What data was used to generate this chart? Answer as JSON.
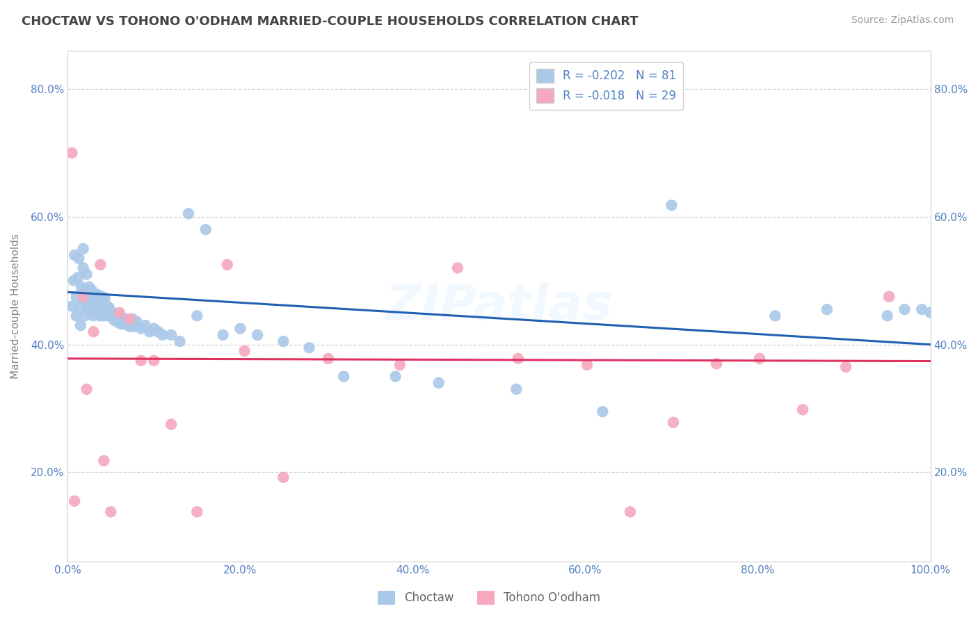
{
  "title": "CHOCTAW VS TOHONO O'ODHAM MARRIED-COUPLE HOUSEHOLDS CORRELATION CHART",
  "source": "Source: ZipAtlas.com",
  "ylabel": "Married-couple Households",
  "legend_labels": [
    "Choctaw",
    "Tohono O'odham"
  ],
  "choctaw_R": -0.202,
  "choctaw_N": 81,
  "tohono_R": -0.018,
  "tohono_N": 29,
  "choctaw_color": "#aac8e8",
  "tohono_color": "#f5a8be",
  "choctaw_line_color": "#2060b0",
  "tohono_line_color": "#e03060",
  "background_color": "#ffffff",
  "grid_color": "#c8c8d8",
  "tick_color": "#5080c0",
  "xlim": [
    0.0,
    1.0
  ],
  "ylim": [
    0.06,
    0.86
  ],
  "xticks": [
    0.0,
    0.2,
    0.4,
    0.6,
    0.8,
    1.0
  ],
  "yticks": [
    0.2,
    0.4,
    0.6,
    0.8
  ],
  "choctaw_trend_start": 0.482,
  "choctaw_trend_end": 0.4,
  "tohono_trend_start": 0.378,
  "tohono_trend_end": 0.374,
  "choctaw_x": [
    0.005,
    0.007,
    0.008,
    0.01,
    0.01,
    0.012,
    0.013,
    0.015,
    0.015,
    0.016,
    0.018,
    0.018,
    0.02,
    0.02,
    0.021,
    0.022,
    0.023,
    0.024,
    0.025,
    0.026,
    0.027,
    0.028,
    0.03,
    0.03,
    0.031,
    0.032,
    0.033,
    0.035,
    0.036,
    0.037,
    0.038,
    0.04,
    0.041,
    0.042,
    0.043,
    0.045,
    0.046,
    0.047,
    0.048,
    0.05,
    0.052,
    0.054,
    0.056,
    0.058,
    0.06,
    0.062,
    0.065,
    0.068,
    0.07,
    0.072,
    0.075,
    0.078,
    0.08,
    0.085,
    0.09,
    0.095,
    0.1,
    0.105,
    0.11,
    0.12,
    0.13,
    0.14,
    0.15,
    0.16,
    0.18,
    0.2,
    0.22,
    0.25,
    0.28,
    0.32,
    0.38,
    0.43,
    0.52,
    0.62,
    0.7,
    0.82,
    0.88,
    0.95,
    0.97,
    0.99,
    1.0
  ],
  "choctaw_y": [
    0.46,
    0.5,
    0.54,
    0.445,
    0.475,
    0.505,
    0.535,
    0.43,
    0.46,
    0.49,
    0.52,
    0.55,
    0.445,
    0.465,
    0.485,
    0.51,
    0.455,
    0.47,
    0.49,
    0.455,
    0.468,
    0.485,
    0.445,
    0.46,
    0.478,
    0.45,
    0.464,
    0.478,
    0.46,
    0.445,
    0.46,
    0.475,
    0.445,
    0.458,
    0.472,
    0.448,
    0.46,
    0.445,
    0.458,
    0.445,
    0.45,
    0.438,
    0.448,
    0.435,
    0.445,
    0.432,
    0.44,
    0.432,
    0.44,
    0.428,
    0.44,
    0.428,
    0.436,
    0.425,
    0.43,
    0.42,
    0.425,
    0.42,
    0.415,
    0.415,
    0.405,
    0.605,
    0.445,
    0.58,
    0.415,
    0.425,
    0.415,
    0.405,
    0.395,
    0.35,
    0.35,
    0.34,
    0.33,
    0.295,
    0.618,
    0.445,
    0.455,
    0.445,
    0.455,
    0.455,
    0.45
  ],
  "tohono_x": [
    0.005,
    0.008,
    0.018,
    0.022,
    0.03,
    0.038,
    0.042,
    0.05,
    0.06,
    0.072,
    0.085,
    0.1,
    0.12,
    0.15,
    0.185,
    0.205,
    0.25,
    0.302,
    0.385,
    0.452,
    0.522,
    0.602,
    0.652,
    0.702,
    0.752,
    0.802,
    0.852,
    0.902,
    0.952
  ],
  "tohono_y": [
    0.7,
    0.155,
    0.475,
    0.33,
    0.42,
    0.525,
    0.218,
    0.138,
    0.45,
    0.44,
    0.375,
    0.375,
    0.275,
    0.138,
    0.525,
    0.39,
    0.192,
    0.378,
    0.368,
    0.52,
    0.378,
    0.368,
    0.138,
    0.278,
    0.37,
    0.378,
    0.298,
    0.365,
    0.475
  ]
}
